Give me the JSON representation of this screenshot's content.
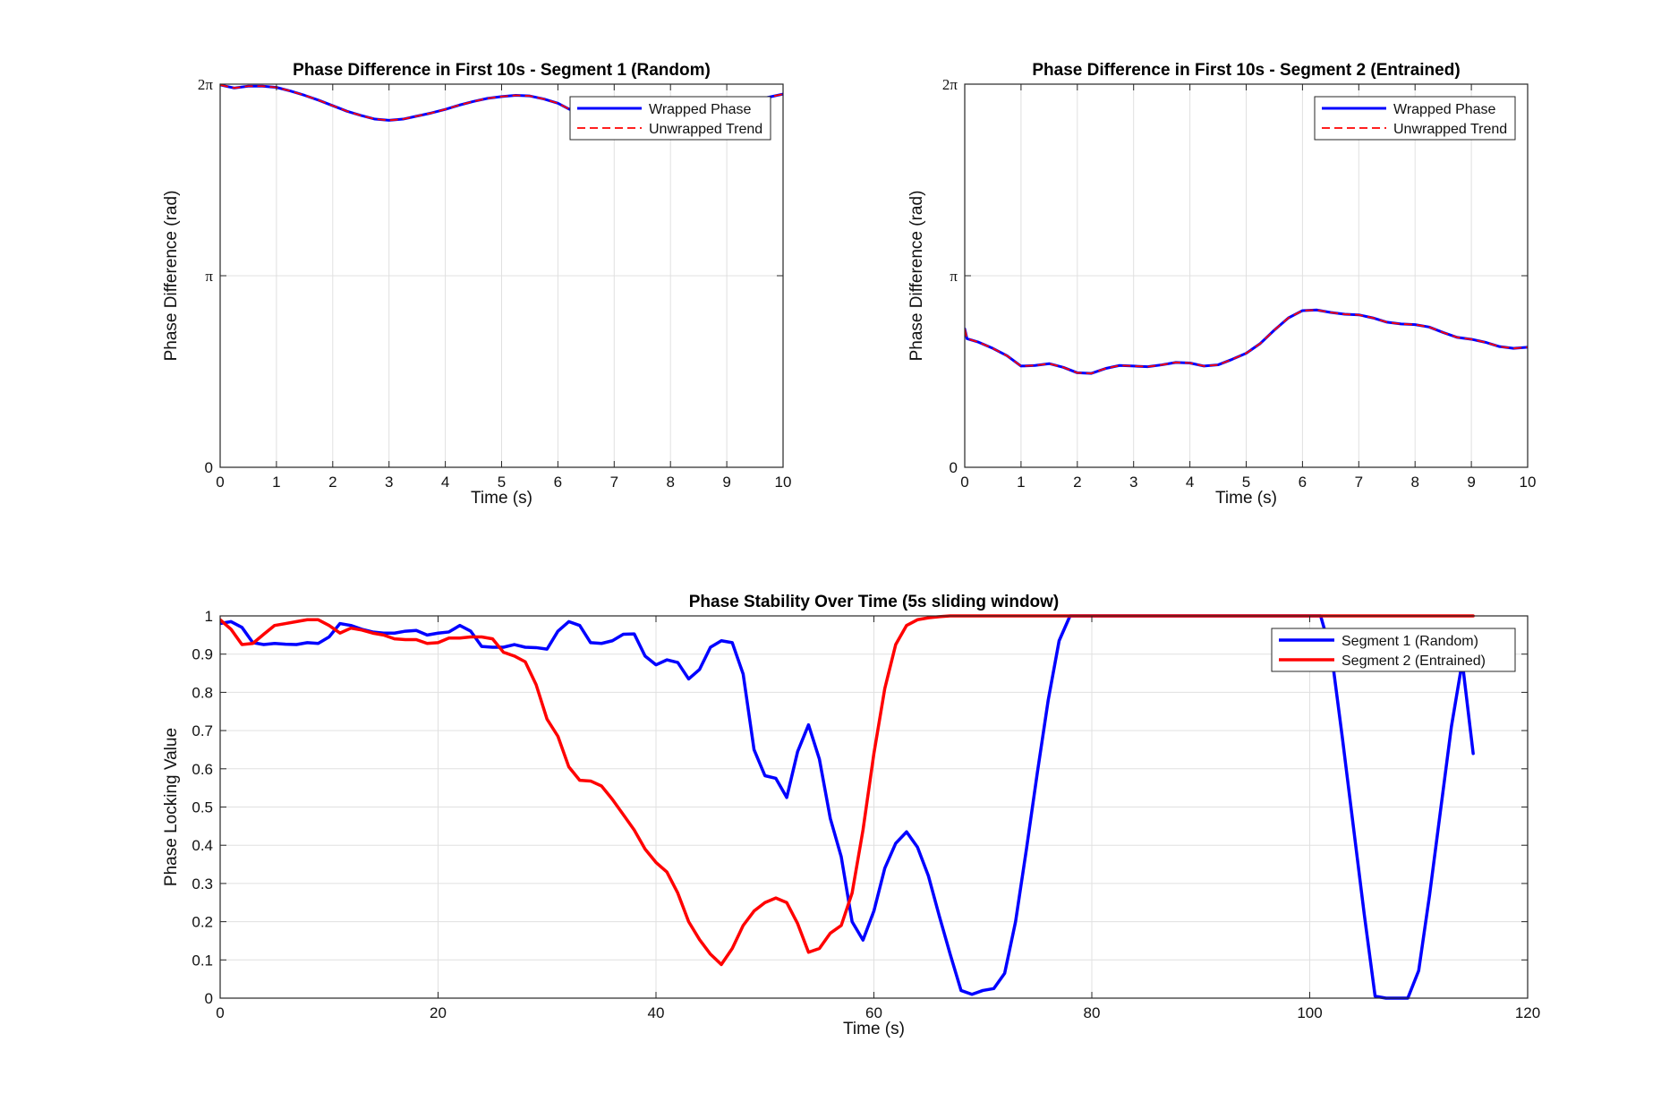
{
  "chart_data": [
    {
      "type": "line",
      "title": "Phase Difference in First 10s - Segment 1 (Random)",
      "xlabel": "Time (s)",
      "ylabel": "Phase Difference (rad)",
      "xlim": [
        0,
        10
      ],
      "ylim": [
        0,
        6.2832
      ],
      "xticks": [
        0,
        1,
        2,
        3,
        4,
        5,
        6,
        7,
        8,
        9,
        10
      ],
      "xtick_labels": [
        "0",
        "1",
        "2",
        "3",
        "4",
        "5",
        "6",
        "7",
        "8",
        "9",
        "10"
      ],
      "yticks": [
        0,
        3.1416,
        6.2832
      ],
      "ytick_labels": [
        "0",
        "π",
        "2π"
      ],
      "grid": true,
      "legend_position": "top-right",
      "series": [
        {
          "name": "Wrapped Phase",
          "color": "#0000ff",
          "style": "solid",
          "x": [
            0,
            0.25,
            0.5,
            0.75,
            1.0,
            1.25,
            1.5,
            1.75,
            2.0,
            2.25,
            2.5,
            2.75,
            3.0,
            3.25,
            3.5,
            3.75,
            4.0,
            4.25,
            4.5,
            4.75,
            5.0,
            5.25,
            5.5,
            5.75,
            6.0,
            6.25,
            6.5,
            6.75,
            7.0,
            7.25,
            7.5,
            7.75,
            8.0,
            8.25,
            8.5,
            8.75,
            9.0,
            9.25,
            9.5,
            9.75,
            10.0
          ],
          "y": [
            6.27,
            6.22,
            6.25,
            6.25,
            6.23,
            6.17,
            6.1,
            6.02,
            5.93,
            5.84,
            5.77,
            5.71,
            5.69,
            5.71,
            5.76,
            5.81,
            5.87,
            5.94,
            6.0,
            6.05,
            6.08,
            6.1,
            6.09,
            6.04,
            5.97,
            5.85,
            5.7,
            5.56,
            5.49,
            5.46,
            5.48,
            5.55,
            5.63,
            5.71,
            5.79,
            5.86,
            5.92,
            5.97,
            6.02,
            6.07,
            6.12
          ]
        },
        {
          "name": "Unwrapped Trend",
          "color": "#ff0000",
          "style": "dashed",
          "x": [
            0,
            0.25,
            0.5,
            0.75,
            1.0,
            1.25,
            1.5,
            1.75,
            2.0,
            2.25,
            2.5,
            2.75,
            3.0,
            3.25,
            3.5,
            3.75,
            4.0,
            4.25,
            4.5,
            4.75,
            5.0,
            5.25,
            5.5,
            5.75,
            6.0,
            6.25,
            6.5,
            6.75,
            7.0,
            7.25,
            7.5,
            7.75,
            8.0,
            8.25,
            8.5,
            8.75,
            9.0,
            9.25,
            9.5,
            9.75,
            10.0
          ],
          "y": [
            6.27,
            6.22,
            6.25,
            6.25,
            6.23,
            6.17,
            6.1,
            6.02,
            5.93,
            5.84,
            5.77,
            5.71,
            5.69,
            5.71,
            5.76,
            5.81,
            5.87,
            5.94,
            6.0,
            6.05,
            6.08,
            6.1,
            6.09,
            6.04,
            5.97,
            5.85,
            5.7,
            5.56,
            5.49,
            5.46,
            5.48,
            5.55,
            5.63,
            5.71,
            5.79,
            5.86,
            5.92,
            5.97,
            6.02,
            6.07,
            6.12
          ]
        }
      ]
    },
    {
      "type": "line",
      "title": "Phase Difference in First 10s - Segment 2 (Entrained)",
      "xlabel": "Time (s)",
      "ylabel": "Phase Difference (rad)",
      "xlim": [
        0,
        10
      ],
      "ylim": [
        0,
        6.2832
      ],
      "xticks": [
        0,
        1,
        2,
        3,
        4,
        5,
        6,
        7,
        8,
        9,
        10
      ],
      "xtick_labels": [
        "0",
        "1",
        "2",
        "3",
        "4",
        "5",
        "6",
        "7",
        "8",
        "9",
        "10"
      ],
      "yticks": [
        0,
        3.1416,
        6.2832
      ],
      "ytick_labels": [
        "0",
        "π",
        "2π"
      ],
      "grid": true,
      "legend_position": "top-right",
      "series": [
        {
          "name": "Wrapped Phase",
          "color": "#0000ff",
          "style": "solid",
          "x": [
            0,
            0.04,
            0.25,
            0.5,
            0.75,
            1.0,
            1.25,
            1.5,
            1.75,
            2.0,
            2.25,
            2.5,
            2.75,
            3.0,
            3.25,
            3.5,
            3.75,
            4.0,
            4.25,
            4.5,
            4.75,
            5.0,
            5.25,
            5.5,
            5.75,
            6.0,
            6.25,
            6.5,
            6.75,
            7.0,
            7.25,
            7.5,
            7.75,
            8.0,
            8.25,
            8.5,
            8.75,
            9.0,
            9.25,
            9.5,
            9.75,
            10.0
          ],
          "y": [
            2.27,
            2.11,
            2.05,
            1.95,
            1.83,
            1.66,
            1.67,
            1.7,
            1.64,
            1.55,
            1.54,
            1.62,
            1.67,
            1.66,
            1.65,
            1.68,
            1.72,
            1.71,
            1.66,
            1.68,
            1.77,
            1.87,
            2.03,
            2.25,
            2.45,
            2.57,
            2.58,
            2.54,
            2.51,
            2.5,
            2.45,
            2.38,
            2.35,
            2.34,
            2.3,
            2.21,
            2.13,
            2.1,
            2.05,
            1.98,
            1.95,
            1.97
          ]
        },
        {
          "name": "Unwrapped Trend",
          "color": "#ff0000",
          "style": "dashed",
          "x": [
            0,
            0.04,
            0.25,
            0.5,
            0.75,
            1.0,
            1.25,
            1.5,
            1.75,
            2.0,
            2.25,
            2.5,
            2.75,
            3.0,
            3.25,
            3.5,
            3.75,
            4.0,
            4.25,
            4.5,
            4.75,
            5.0,
            5.25,
            5.5,
            5.75,
            6.0,
            6.25,
            6.5,
            6.75,
            7.0,
            7.25,
            7.5,
            7.75,
            8.0,
            8.25,
            8.5,
            8.75,
            9.0,
            9.25,
            9.5,
            9.75,
            10.0
          ],
          "y": [
            2.27,
            2.11,
            2.05,
            1.95,
            1.83,
            1.66,
            1.67,
            1.7,
            1.64,
            1.55,
            1.54,
            1.62,
            1.67,
            1.66,
            1.65,
            1.68,
            1.72,
            1.71,
            1.66,
            1.68,
            1.77,
            1.87,
            2.03,
            2.25,
            2.45,
            2.57,
            2.58,
            2.54,
            2.51,
            2.5,
            2.45,
            2.38,
            2.35,
            2.34,
            2.3,
            2.21,
            2.13,
            2.1,
            2.05,
            1.98,
            1.95,
            1.97
          ]
        }
      ]
    },
    {
      "type": "line",
      "title": "Phase Stability Over Time (5s sliding window)",
      "xlabel": "Time (s)",
      "ylabel": "Phase Locking Value",
      "xlim": [
        0,
        120
      ],
      "ylim": [
        0,
        1
      ],
      "xticks": [
        0,
        20,
        40,
        60,
        80,
        100,
        120
      ],
      "xtick_labels": [
        "0",
        "20",
        "40",
        "60",
        "80",
        "100",
        "120"
      ],
      "yticks": [
        0,
        0.1,
        0.2,
        0.3,
        0.4,
        0.5,
        0.6,
        0.7,
        0.8,
        0.9,
        1
      ],
      "ytick_labels": [
        "0",
        "0.1",
        "0.2",
        "0.3",
        "0.4",
        "0.5",
        "0.6",
        "0.7",
        "0.8",
        "0.9",
        "1"
      ],
      "grid": true,
      "legend_position": "top-right",
      "series": [
        {
          "name": "Segment 1 (Random)",
          "color": "#0000ff",
          "style": "solid",
          "x": [
            0,
            1,
            2,
            3,
            4,
            5,
            6,
            7,
            8,
            9,
            10,
            11,
            12,
            13,
            14,
            15,
            16,
            17,
            18,
            19,
            20,
            21,
            22,
            23,
            24,
            25,
            26,
            27,
            28,
            29,
            30,
            31,
            32,
            33,
            34,
            35,
            36,
            37,
            38,
            39,
            40,
            41,
            42,
            43,
            44,
            45,
            46,
            47,
            48,
            49,
            50,
            51,
            52,
            53,
            54,
            55,
            56,
            57,
            58,
            59,
            60,
            61,
            62,
            63,
            64,
            65,
            66,
            67,
            68,
            69,
            70,
            71,
            72,
            73,
            74,
            75,
            76,
            77,
            78,
            80,
            90,
            100,
            101,
            102,
            103,
            104,
            105,
            106,
            107,
            108,
            109,
            110,
            111,
            112,
            113,
            114,
            115
          ],
          "y": [
            0.98,
            0.985,
            0.97,
            0.93,
            0.925,
            0.928,
            0.926,
            0.925,
            0.93,
            0.928,
            0.945,
            0.98,
            0.975,
            0.965,
            0.958,
            0.955,
            0.955,
            0.96,
            0.962,
            0.95,
            0.955,
            0.958,
            0.975,
            0.96,
            0.92,
            0.918,
            0.918,
            0.925,
            0.918,
            0.917,
            0.913,
            0.96,
            0.985,
            0.975,
            0.93,
            0.928,
            0.935,
            0.952,
            0.953,
            0.895,
            0.872,
            0.885,
            0.878,
            0.835,
            0.86,
            0.918,
            0.935,
            0.93,
            0.848,
            0.65,
            0.582,
            0.575,
            0.525,
            0.645,
            0.715,
            0.625,
            0.47,
            0.37,
            0.2,
            0.152,
            0.228,
            0.34,
            0.405,
            0.435,
            0.395,
            0.32,
            0.215,
            0.115,
            0.02,
            0.01,
            0.02,
            0.025,
            0.065,
            0.2,
            0.39,
            0.59,
            0.78,
            0.935,
            1.0,
            1.0,
            1.0,
            1.0,
            1.0,
            0.9,
            0.68,
            0.45,
            0.22,
            0.005,
            0.0,
            0.0,
            0.0,
            0.072,
            0.27,
            0.49,
            0.71,
            0.88,
            0.64
          ]
        },
        {
          "name": "Segment 2 (Entrained)",
          "color": "#ff0000",
          "style": "solid",
          "x": [
            0,
            1,
            2,
            3,
            4,
            5,
            6,
            7,
            8,
            9,
            10,
            11,
            12,
            13,
            14,
            15,
            16,
            17,
            18,
            19,
            20,
            21,
            22,
            23,
            24,
            25,
            26,
            27,
            28,
            29,
            30,
            31,
            32,
            33,
            34,
            35,
            36,
            37,
            38,
            39,
            40,
            41,
            42,
            43,
            44,
            45,
            46,
            47,
            48,
            49,
            50,
            51,
            52,
            53,
            54,
            55,
            56,
            57,
            58,
            59,
            60,
            61,
            62,
            63,
            64,
            65,
            66,
            67,
            68,
            70,
            80,
            90,
            100,
            110,
            115
          ],
          "y": [
            0.99,
            0.965,
            0.925,
            0.928,
            0.952,
            0.975,
            0.98,
            0.985,
            0.99,
            0.99,
            0.975,
            0.955,
            0.968,
            0.963,
            0.955,
            0.95,
            0.94,
            0.938,
            0.938,
            0.928,
            0.93,
            0.942,
            0.942,
            0.945,
            0.945,
            0.94,
            0.905,
            0.895,
            0.88,
            0.82,
            0.73,
            0.685,
            0.605,
            0.57,
            0.568,
            0.555,
            0.52,
            0.48,
            0.44,
            0.39,
            0.355,
            0.33,
            0.275,
            0.2,
            0.153,
            0.115,
            0.088,
            0.13,
            0.19,
            0.228,
            0.25,
            0.262,
            0.25,
            0.195,
            0.12,
            0.13,
            0.17,
            0.19,
            0.275,
            0.44,
            0.64,
            0.81,
            0.925,
            0.975,
            0.99,
            0.995,
            0.998,
            1.0,
            1.0,
            1.0,
            1.0,
            1.0,
            1.0,
            1.0,
            1.0
          ]
        }
      ]
    }
  ]
}
